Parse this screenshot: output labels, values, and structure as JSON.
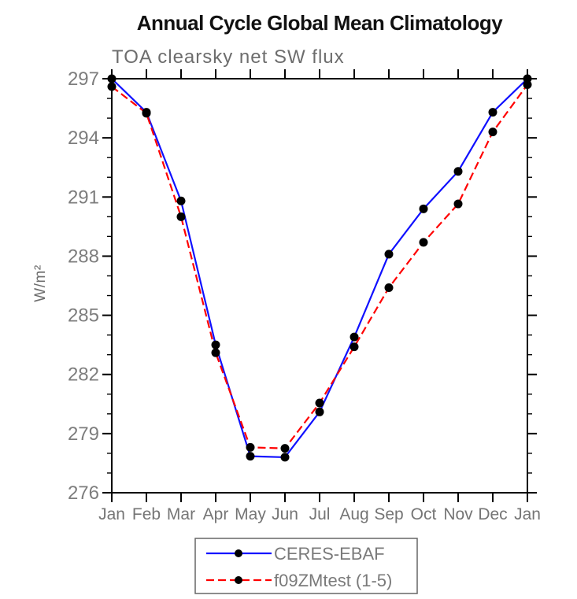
{
  "chart_data": {
    "type": "line",
    "title": "Annual Cycle Global Mean Climatology",
    "subtitle": "TOA clearsky net SW flux",
    "xlabel": "",
    "ylabel": "W/m²",
    "x_categories": [
      "Jan",
      "Feb",
      "Mar",
      "Apr",
      "May",
      "Jun",
      "Jul",
      "Aug",
      "Sep",
      "Oct",
      "Nov",
      "Dec",
      "Jan"
    ],
    "ylim": [
      276,
      297
    ],
    "y_ticks_major": [
      276,
      279,
      282,
      285,
      288,
      291,
      294,
      297
    ],
    "y_minor_tick_step": 1,
    "grid": false,
    "legend_position": "bottom-center",
    "series": [
      {
        "name": "CERES-EBAF",
        "line_style": "solid",
        "color": "#1010ff",
        "marker": "circle",
        "marker_color": "#000000",
        "values": [
          297.0,
          295.3,
          290.8,
          283.5,
          277.85,
          277.8,
          280.1,
          283.9,
          288.1,
          290.4,
          292.3,
          295.3,
          297.0
        ]
      },
      {
        "name": "f09ZMtest (1-5)",
        "line_style": "dashed",
        "color": "#ff0000",
        "marker": "circle",
        "marker_color": "#000000",
        "values": [
          296.6,
          295.25,
          290.0,
          283.1,
          278.3,
          278.25,
          280.55,
          283.4,
          286.4,
          288.7,
          290.65,
          294.3,
          296.7
        ]
      }
    ],
    "axis_color": "#000000",
    "tick_label_color": "#7d7d7d",
    "title_color": "#111111",
    "subtitle_color": "#6d6d6d"
  }
}
